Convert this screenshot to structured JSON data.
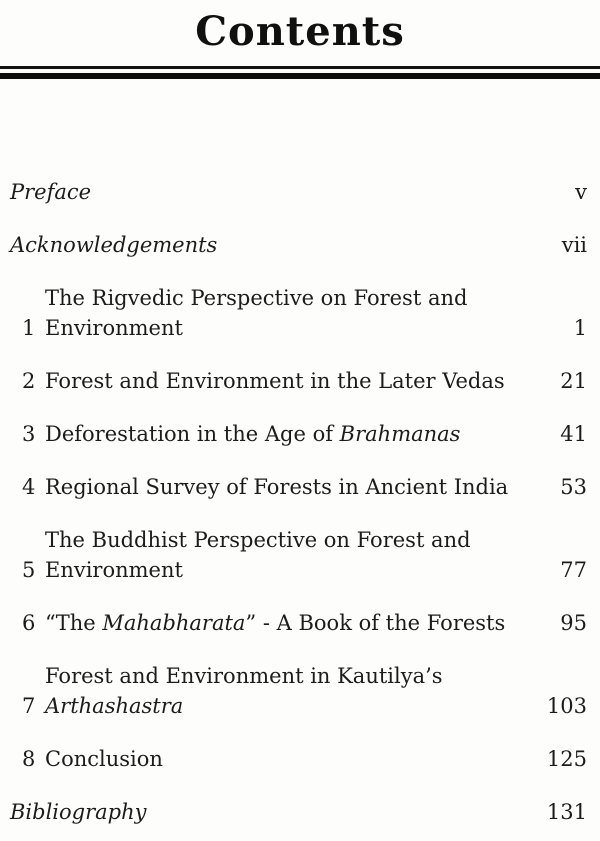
{
  "page": {
    "title": "Contents"
  },
  "colors": {
    "background": "#fdfdfb",
    "text": "#1c1c1c",
    "rule": "#0c0c0c"
  },
  "toc": {
    "entries": [
      {
        "number": "",
        "page": "v",
        "front_matter": true,
        "segments": [
          {
            "text": "Preface",
            "italic": true
          }
        ]
      },
      {
        "number": "",
        "page": "vii",
        "front_matter": true,
        "segments": [
          {
            "text": "Acknowledgements",
            "italic": true
          }
        ]
      },
      {
        "number": "1",
        "page": "1",
        "front_matter": false,
        "segments": [
          {
            "text": "The Rigvedic Perspective on Forest and\nEnvironment",
            "italic": false
          }
        ]
      },
      {
        "number": "2",
        "page": "21",
        "front_matter": false,
        "segments": [
          {
            "text": "Forest and Environment in the Later Vedas",
            "italic": false
          }
        ]
      },
      {
        "number": "3",
        "page": "41",
        "front_matter": false,
        "segments": [
          {
            "text": "Deforestation in the Age of ",
            "italic": false
          },
          {
            "text": "Brahmanas",
            "italic": true
          }
        ]
      },
      {
        "number": "4",
        "page": "53",
        "front_matter": false,
        "segments": [
          {
            "text": "Regional Survey of Forests in Ancient India",
            "italic": false
          }
        ]
      },
      {
        "number": "5",
        "page": "77",
        "front_matter": false,
        "segments": [
          {
            "text": "The Buddhist Perspective on Forest and\nEnvironment",
            "italic": false
          }
        ]
      },
      {
        "number": "6",
        "page": "95",
        "front_matter": false,
        "segments": [
          {
            "text": "“The ",
            "italic": false
          },
          {
            "text": "Mahabharata",
            "italic": true
          },
          {
            "text": "” - A Book of the Forests",
            "italic": false
          }
        ]
      },
      {
        "number": "7",
        "page": "103",
        "front_matter": false,
        "segments": [
          {
            "text": "Forest and Environment in Kautilya’s\n",
            "italic": false
          },
          {
            "text": "Arthashastra",
            "italic": true
          }
        ]
      },
      {
        "number": "8",
        "page": "125",
        "front_matter": false,
        "segments": [
          {
            "text": "Conclusion",
            "italic": false
          }
        ]
      },
      {
        "number": "",
        "page": "131",
        "front_matter": true,
        "segments": [
          {
            "text": "Bibliography",
            "italic": true
          }
        ]
      }
    ]
  }
}
